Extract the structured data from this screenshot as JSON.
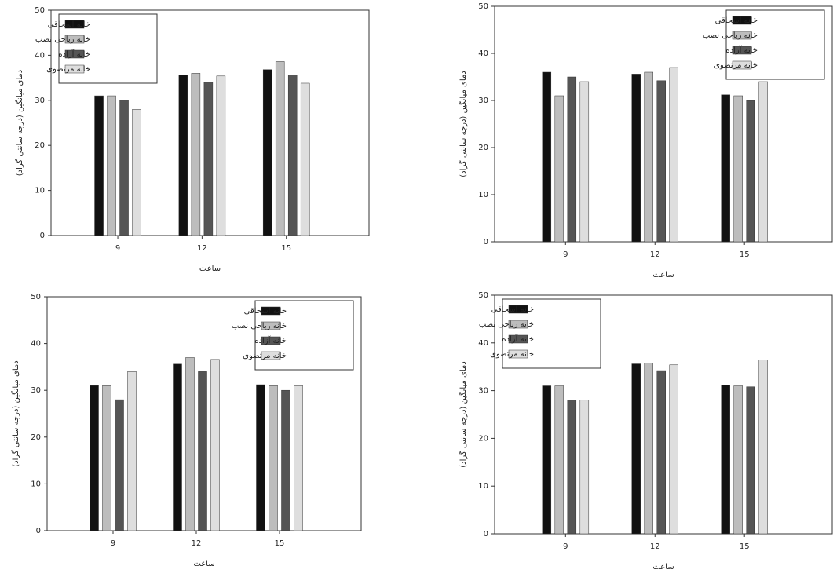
{
  "chart_data": [
    {
      "type": "bar",
      "x_label": "ساعت",
      "y_label": "دمای میانگین (درجه سانتی گراد)",
      "categories": [
        "9",
        "12",
        "15"
      ],
      "series": [
        {
          "name": "خانه اسحاقی",
          "color": "#111111",
          "values": [
            31,
            35.6,
            36.8
          ]
        },
        {
          "name": "خانه رباحی نصب",
          "color": "#bdbdbd",
          "values": [
            31,
            36,
            38.6
          ]
        },
        {
          "name": "خانه آزاده",
          "color": "#555555",
          "values": [
            30,
            34,
            35.6
          ]
        },
        {
          "name": "خانه مرتضوی",
          "color": "#dedede",
          "values": [
            28,
            35.4,
            33.8
          ]
        }
      ],
      "ylim": [
        0,
        50
      ],
      "yticks": [
        0,
        10,
        20,
        30,
        40,
        50
      ],
      "legend": "upper left"
    },
    {
      "type": "bar",
      "x_label": "ساعت",
      "y_label": "دمای میانگین (درجه سانتی گراد)",
      "categories": [
        "9",
        "12",
        "15"
      ],
      "series": [
        {
          "name": "خانه اسحاقی",
          "color": "#111111",
          "values": [
            36,
            35.6,
            31.2
          ]
        },
        {
          "name": "خانه رباحی نصب",
          "color": "#bdbdbd",
          "values": [
            31,
            36,
            31
          ]
        },
        {
          "name": "خانه آزاده",
          "color": "#555555",
          "values": [
            35,
            34.2,
            30
          ]
        },
        {
          "name": "خانه مرتضوی",
          "color": "#dedede",
          "values": [
            34,
            37,
            34
          ]
        }
      ],
      "ylim": [
        0,
        50
      ],
      "yticks": [
        0,
        10,
        20,
        30,
        40,
        50
      ],
      "legend": "upper right"
    },
    {
      "type": "bar",
      "x_label": "ساعت",
      "y_label": "دمای میانگین (درجه سانتی گراد)",
      "categories": [
        "9",
        "12",
        "15"
      ],
      "series": [
        {
          "name": "خانه اسحاقی",
          "color": "#111111",
          "values": [
            31,
            35.6,
            31.2
          ]
        },
        {
          "name": "خانه رباحی نصب",
          "color": "#bdbdbd",
          "values": [
            31,
            37,
            31
          ]
        },
        {
          "name": "خانه آزاده",
          "color": "#555555",
          "values": [
            28,
            34,
            30
          ]
        },
        {
          "name": "خانه مرتضوی",
          "color": "#dedede",
          "values": [
            34,
            36.6,
            31
          ]
        }
      ],
      "ylim": [
        0,
        50
      ],
      "yticks": [
        0,
        10,
        20,
        30,
        40,
        50
      ],
      "legend": "upper right"
    },
    {
      "type": "bar",
      "x_label": "ساعت",
      "y_label": "دمای میانگین (درجه سانتی گراد)",
      "categories": [
        "9",
        "12",
        "15"
      ],
      "series": [
        {
          "name": "خانه اسحاقی",
          "color": "#111111",
          "values": [
            31,
            35.6,
            31.2
          ]
        },
        {
          "name": "خانه رباحی نصب",
          "color": "#bdbdbd",
          "values": [
            31,
            35.8,
            31
          ]
        },
        {
          "name": "خانه آزاده",
          "color": "#555555",
          "values": [
            28,
            34.2,
            30.8
          ]
        },
        {
          "name": "خانه مرتضوی",
          "color": "#dedede",
          "values": [
            28,
            35.4,
            36.4
          ]
        }
      ],
      "ylim": [
        0,
        50
      ],
      "yticks": [
        0,
        10,
        20,
        30,
        40,
        50
      ],
      "legend": "upper left"
    }
  ]
}
